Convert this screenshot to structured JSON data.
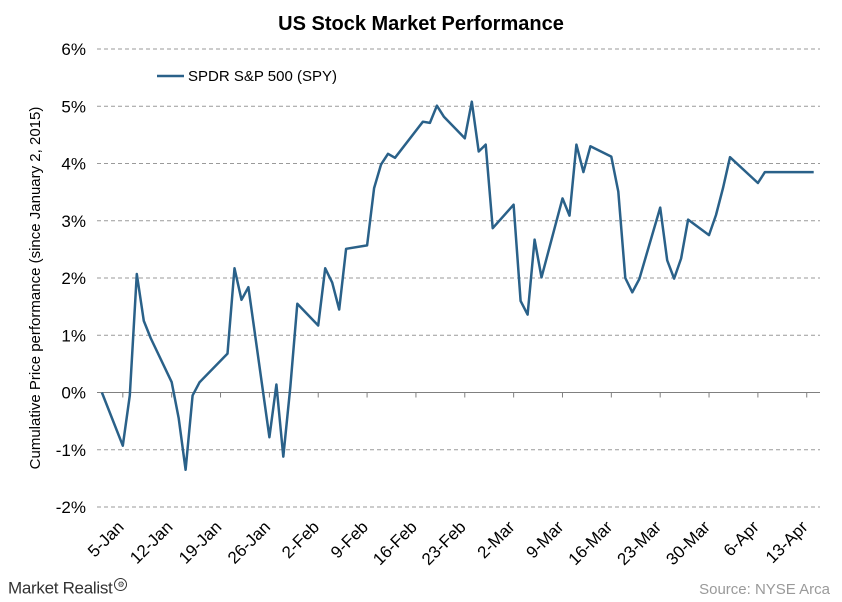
{
  "footer": {
    "brand": "Market Realist",
    "source": "Source: NYSE Arca"
  },
  "chart_data": {
    "type": "line",
    "title": "US Stock Market Performance",
    "xlabel": "",
    "ylabel": "Cumulative Price performance (since January 2, 2015)",
    "ylim": [
      -2,
      6
    ],
    "yticks": [
      -2,
      -1,
      0,
      1,
      2,
      3,
      4,
      5,
      6
    ],
    "ytick_labels": [
      "-2%",
      "-1%",
      "0%",
      "1%",
      "2%",
      "3%",
      "4%",
      "5%",
      "6%"
    ],
    "xtick_labels": [
      "5-Jan",
      "12-Jan",
      "19-Jan",
      "26-Jan",
      "2-Feb",
      "9-Feb",
      "16-Feb",
      "23-Feb",
      "2-Mar",
      "9-Mar",
      "16-Mar",
      "23-Mar",
      "30-Mar",
      "6-Apr",
      "13-Apr"
    ],
    "grid": true,
    "legend": "top-left",
    "line_color": "#2a6189",
    "series": [
      {
        "name": "SPDR S&P 500 (SPY)",
        "dates": [
          "2015-01-02",
          "2015-01-05",
          "2015-01-06",
          "2015-01-07",
          "2015-01-08",
          "2015-01-09",
          "2015-01-12",
          "2015-01-13",
          "2015-01-14",
          "2015-01-15",
          "2015-01-16",
          "2015-01-20",
          "2015-01-21",
          "2015-01-22",
          "2015-01-23",
          "2015-01-26",
          "2015-01-27",
          "2015-01-28",
          "2015-01-29",
          "2015-01-30",
          "2015-02-02",
          "2015-02-03",
          "2015-02-04",
          "2015-02-05",
          "2015-02-06",
          "2015-02-09",
          "2015-02-10",
          "2015-02-11",
          "2015-02-12",
          "2015-02-13",
          "2015-02-17",
          "2015-02-18",
          "2015-02-19",
          "2015-02-20",
          "2015-02-23",
          "2015-02-24",
          "2015-02-25",
          "2015-02-26",
          "2015-02-27",
          "2015-03-02",
          "2015-03-03",
          "2015-03-04",
          "2015-03-05",
          "2015-03-06",
          "2015-03-09",
          "2015-03-10",
          "2015-03-11",
          "2015-03-12",
          "2015-03-13",
          "2015-03-16",
          "2015-03-17",
          "2015-03-18",
          "2015-03-19",
          "2015-03-20",
          "2015-03-23",
          "2015-03-24",
          "2015-03-25",
          "2015-03-26",
          "2015-03-27",
          "2015-03-30",
          "2015-03-31",
          "2015-04-01",
          "2015-04-02",
          "2015-04-06",
          "2015-04-07",
          "2015-04-08",
          "2015-04-09",
          "2015-04-10",
          "2015-04-13",
          "2015-04-14"
        ],
        "values": [
          0.0,
          -0.93,
          -0.05,
          2.07,
          1.25,
          0.95,
          0.18,
          -0.45,
          -1.35,
          -0.05,
          0.18,
          0.68,
          2.17,
          1.62,
          1.84,
          -0.78,
          0.14,
          -1.12,
          0.09,
          1.55,
          1.17,
          2.17,
          1.92,
          1.45,
          2.51,
          2.57,
          3.57,
          3.98,
          4.17,
          4.1,
          4.73,
          4.71,
          5.01,
          4.82,
          4.44,
          5.08,
          4.21,
          4.33,
          2.87,
          3.28,
          1.6,
          1.36,
          2.67,
          2.01,
          3.39,
          3.09,
          4.33,
          3.85,
          4.3,
          4.12,
          3.51,
          2.0,
          1.75,
          1.98,
          3.23,
          2.31,
          1.99,
          2.34,
          3.02,
          2.75,
          3.1,
          3.57,
          4.11,
          3.66,
          3.85,
          3.85,
          3.85,
          3.85,
          3.85,
          3.85
        ]
      }
    ]
  }
}
